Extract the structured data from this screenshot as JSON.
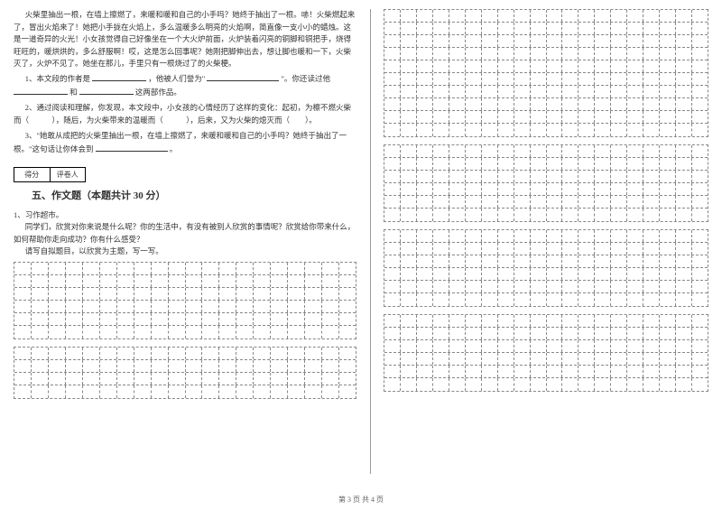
{
  "passage": {
    "p1": "火柴里抽出一根，在墙上擦燃了，来暖和暖和自己的小手吗？她终于抽出了一根。哧！火柴燃起来了，冒出火焰来了！她把小手拢在火焰上，多么温暖多么明亮的火焰啊，简直像一支小小的蜡烛。这是一道奇异的火光！小女孩觉得自己好像坐在一个大火炉前面，火炉装着闪亮的铜脚和铜把手，烧得旺旺的，暖烘烘的，多么舒服啊！哎，这是怎么回事呢？她刚把脚伸出去，想让脚也暖和一下，火柴灭了，火炉不见了。她坐在那儿，手里只有一根烧过了的火柴梗。"
  },
  "questions": {
    "q1_prefix": "1、本文段的作者是",
    "q1_mid": "，他被人们誉为\"",
    "q1_end": "\"。你还读过他",
    "q1_line2_mid": "和",
    "q1_line2_end": "这两部作品。",
    "q2": "2、通过阅读和理解，你发现，本文段中，小女孩的心情经历了这样的变化：起初，为檫不燃火柴而（　　　），随后，为火柴带来的温暖而（　　　），后来，又为火柴的熄灭而（　　）。",
    "q3": "3、\"她敢从成把的火柴里抽出一根，在墙上擦燃了，来暖和暖和自己的小手吗？她终于抽出了一根。\"这句话让你体会到",
    "q3_end": "。"
  },
  "score_box": {
    "col1": "得分",
    "col2": "评卷人"
  },
  "section5": {
    "title": "五、作文题（本题共计 30 分）",
    "q1_label": "1、习作超市。",
    "q1_p1": "同学们，欣赏对你来说是什么呢？你的生活中，有没有被别人欣赏的事情呢？欣赏给你带来什么，如何帮助你走向成功？你有什么感受？",
    "q1_p2": "请写自拟题目，以欣赏为主题，写一写。"
  },
  "grids": {
    "box1_rows": 6,
    "box1_cols": 20,
    "box2_rows": 4,
    "box2_cols": 20,
    "box3_rows": 10,
    "box3_cols": 20,
    "box4_rows": 6,
    "box4_cols": 20,
    "box5_rows": 6,
    "box5_cols": 20,
    "box6_rows": 6,
    "box6_cols": 20
  },
  "footer": "第 3 页 共 4 页"
}
